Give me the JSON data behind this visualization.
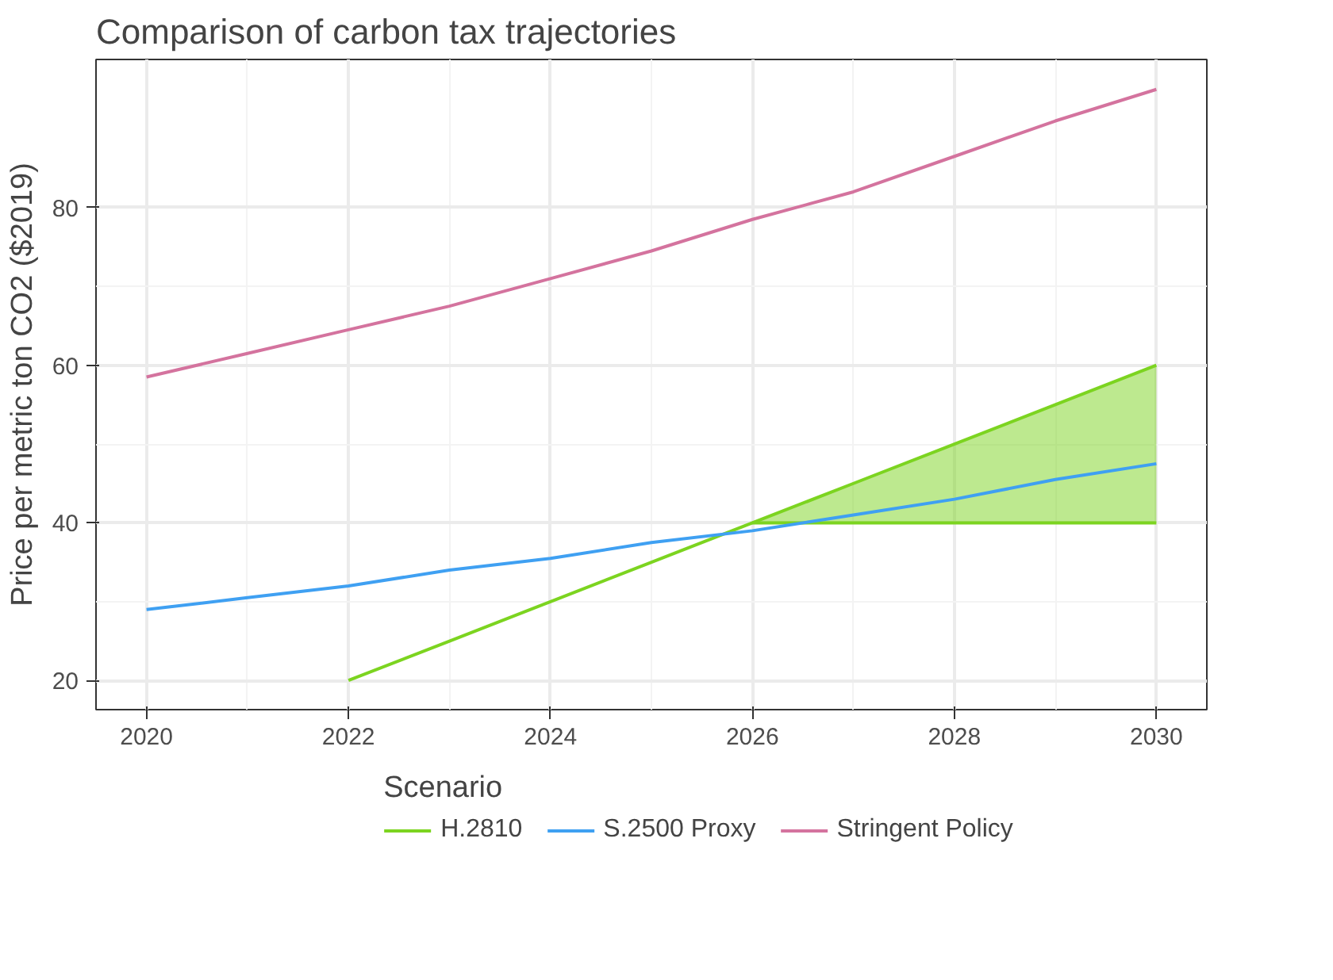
{
  "chart_data": {
    "type": "line",
    "title": "Comparison of carbon tax trajectories",
    "ylabel": "Price per metric ton CO2 ($2019)",
    "legend_title": "Scenario",
    "x": [
      2020,
      2021,
      2022,
      2023,
      2024,
      2025,
      2026,
      2027,
      2028,
      2029,
      2030
    ],
    "series": [
      {
        "name": "H.2810",
        "color": "#7cd420",
        "values": [
          null,
          null,
          20,
          25,
          30,
          35,
          40,
          45,
          50,
          55,
          60
        ],
        "lower": [
          null,
          null,
          null,
          null,
          null,
          null,
          40,
          40,
          40,
          40,
          40
        ],
        "upper": [
          null,
          null,
          null,
          null,
          null,
          null,
          40,
          45,
          50,
          55,
          60
        ]
      },
      {
        "color": "#7cd420",
        "values": [
          null,
          null,
          null,
          null,
          null,
          null,
          40,
          40,
          40,
          40,
          40
        ]
      },
      {
        "name": "S.2500 Proxy",
        "color": "#3fa0f2",
        "values": [
          29,
          30.5,
          32,
          34,
          35.5,
          37.5,
          39,
          41,
          43,
          45.5,
          47.5
        ]
      },
      {
        "name": "Stringent Policy",
        "color": "#d4739e",
        "values": [
          58.5,
          61.5,
          64.5,
          67.5,
          71,
          74.5,
          78.5,
          82,
          86.5,
          91,
          95
        ]
      }
    ],
    "xlim": [
      2019.5,
      2030.5
    ],
    "ylim": [
      16.3,
      98.8
    ],
    "xticks": [
      2020,
      2022,
      2024,
      2026,
      2028,
      2030
    ],
    "yticks": [
      20,
      40,
      60,
      80
    ],
    "grid": true,
    "legend": "bottom",
    "marker": "none",
    "line_style": "solid"
  }
}
